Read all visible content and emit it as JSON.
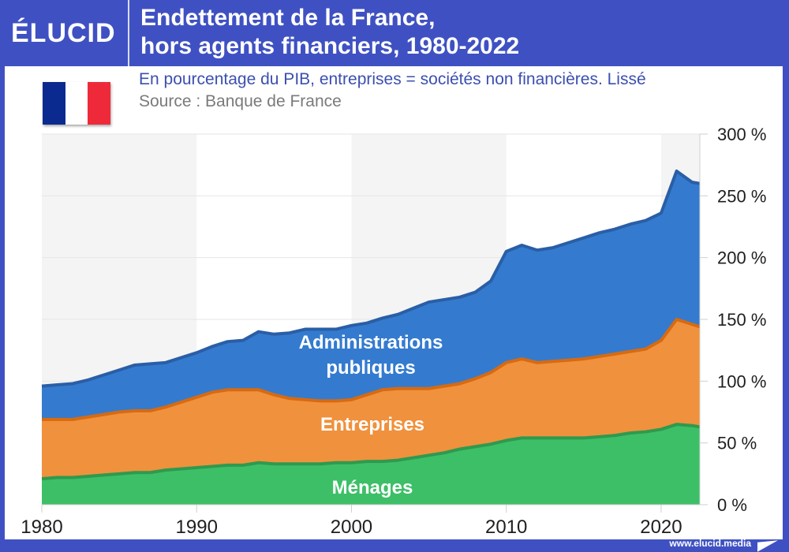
{
  "header": {
    "logo": "ÉLUCID",
    "title_line1": "Endettement de la France,",
    "title_line2": "hors agents financiers, 1980-2022"
  },
  "subtitle": "En pourcentage du PIB, entreprises = sociétés non financières. Lissé",
  "source": "Source : Banque de France",
  "footer": {
    "url": "www.elucid.media"
  },
  "flag": {
    "colors": [
      "#0b2a8f",
      "#ffffff",
      "#ee2a3a"
    ]
  },
  "colors": {
    "frame": "#3f51c2",
    "menages": "#3dbf67",
    "menages_line": "#2e9a4f",
    "entreprises": "#f0913d",
    "entreprises_line": "#d86a10",
    "administrations": "#347bcf",
    "administrations_line": "#2a5ea6",
    "band": "#f4f4f4"
  },
  "chart_data": {
    "type": "area",
    "stacked": true,
    "title": "Endettement de la France, hors agents financiers, 1980-2022",
    "subtitle": "En pourcentage du PIB, entreprises = sociétés non financières. Lissé",
    "xlabel": "",
    "ylabel": "",
    "xlim": [
      1980,
      2022.5
    ],
    "ylim": [
      0,
      300
    ],
    "x_ticks": [
      "1980",
      "1990",
      "2000",
      "2010",
      "2020"
    ],
    "y_ticks": [
      "0 %",
      "50 %",
      "100 %",
      "150 %",
      "200 %",
      "250 %",
      "300 %"
    ],
    "y_axis_position": "right",
    "grid": true,
    "alternating_decade_bands": true,
    "x": [
      1980,
      1981,
      1982,
      1983,
      1984,
      1985,
      1986,
      1987,
      1988,
      1989,
      1990,
      1991,
      1992,
      1993,
      1994,
      1995,
      1996,
      1997,
      1998,
      1999,
      2000,
      2001,
      2002,
      2003,
      2004,
      2005,
      2006,
      2007,
      2008,
      2009,
      2010,
      2011,
      2012,
      2013,
      2014,
      2015,
      2016,
      2017,
      2018,
      2019,
      2020,
      2021,
      2022,
      2022.5
    ],
    "series": [
      {
        "name": "Ménages",
        "label": "Ménages",
        "values": [
          21,
          22,
          22,
          23,
          24,
          25,
          26,
          26,
          28,
          29,
          30,
          31,
          32,
          32,
          34,
          33,
          33,
          33,
          33,
          34,
          34,
          35,
          35,
          36,
          38,
          40,
          42,
          45,
          47,
          49,
          52,
          54,
          54,
          54,
          54,
          54,
          55,
          56,
          58,
          59,
          61,
          65,
          64,
          63
        ]
      },
      {
        "name": "Entreprises",
        "label": "Entreprises",
        "values": [
          48,
          47,
          47,
          48,
          49,
          50,
          50,
          50,
          51,
          54,
          57,
          60,
          61,
          61,
          59,
          56,
          53,
          52,
          51,
          50,
          51,
          54,
          58,
          58,
          56,
          54,
          54,
          53,
          55,
          58,
          63,
          64,
          61,
          62,
          63,
          64,
          65,
          66,
          66,
          67,
          72,
          85,
          82,
          81
        ]
      },
      {
        "name": "Administrations publiques",
        "label": "Administrations\npubliques",
        "values": [
          27,
          28,
          29,
          30,
          32,
          34,
          37,
          38,
          36,
          36,
          36,
          37,
          39,
          40,
          47,
          49,
          53,
          57,
          58,
          58,
          60,
          58,
          58,
          60,
          65,
          70,
          70,
          70,
          70,
          74,
          90,
          92,
          91,
          92,
          95,
          98,
          100,
          101,
          103,
          104,
          103,
          120,
          115,
          116
        ]
      }
    ],
    "totals_approx": [
      96,
      97,
      98,
      101,
      105,
      109,
      113,
      114,
      115,
      119,
      123,
      128,
      132,
      133,
      140,
      138,
      139,
      142,
      142,
      142,
      145,
      147,
      151,
      154,
      159,
      164,
      166,
      168,
      172,
      181,
      205,
      210,
      206,
      208,
      212,
      216,
      220,
      223,
      227,
      230,
      236,
      270,
      261,
      260
    ],
    "area_labels": [
      {
        "series": "Administrations publiques",
        "lines": [
          "Administrations",
          "publiques"
        ]
      },
      {
        "series": "Entreprises",
        "lines": [
          "Entreprises"
        ]
      },
      {
        "series": "Ménages",
        "lines": [
          "Ménages"
        ]
      }
    ]
  }
}
